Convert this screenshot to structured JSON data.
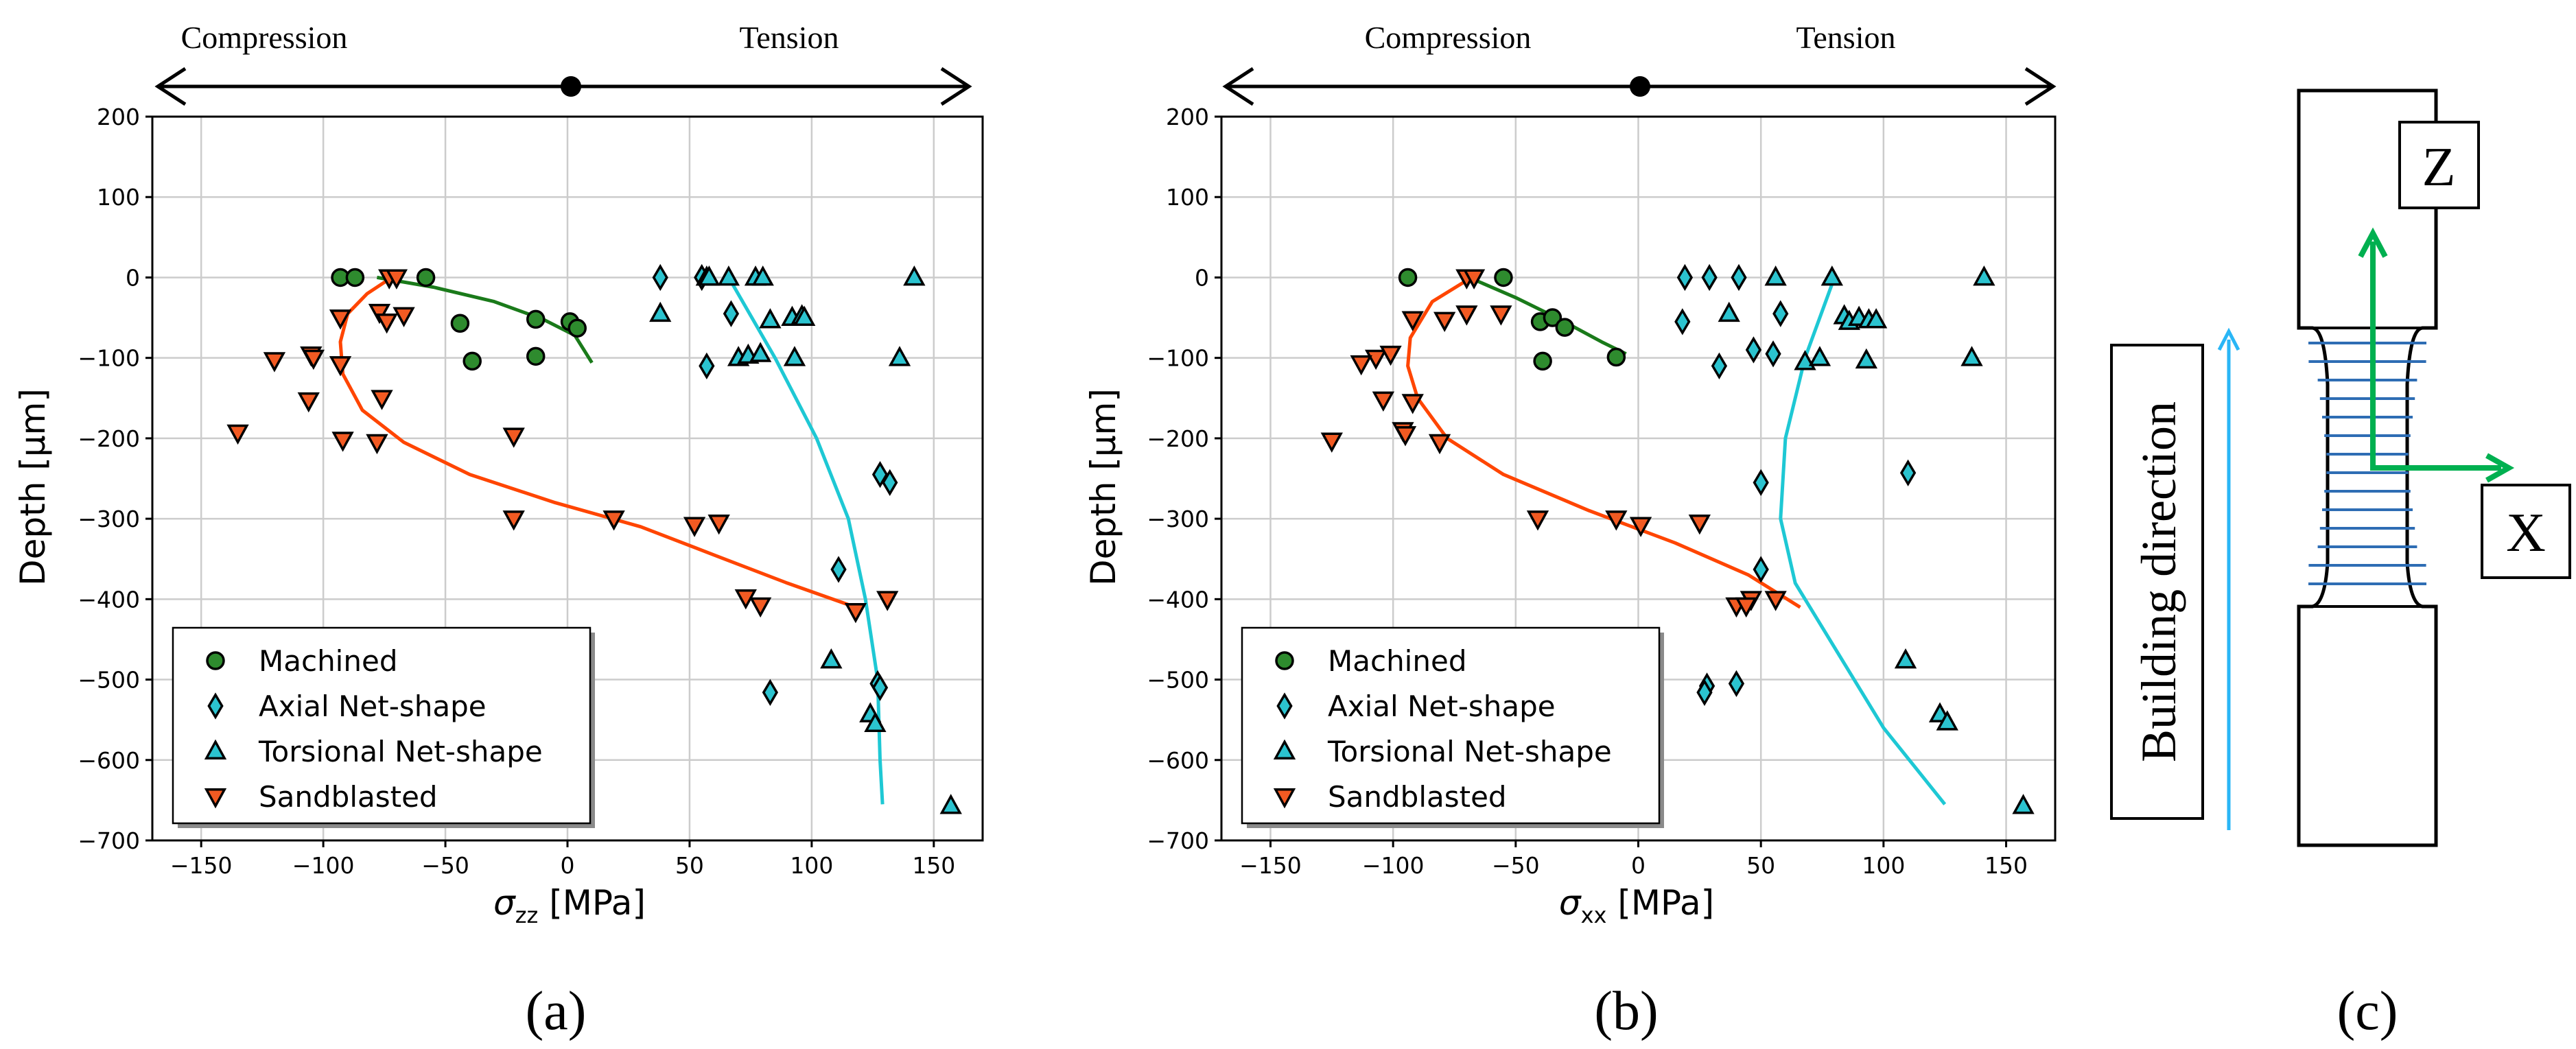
{
  "colors": {
    "machined": "#2e8b2e",
    "axial": "#2bc3cf",
    "torsional": "#2bc3cf",
    "sandblasted": "#f25a22",
    "fit_machined": "#1a7a1a",
    "fit_netshape": "#1ec8d4",
    "fit_sandblasted": "#ff4500",
    "arrow_blue": "#29b6f6",
    "axis_green": "#00b050",
    "layer_blue": "#2e6db4"
  },
  "chart_data": [
    {
      "type": "scatter",
      "panel": "(a)",
      "xlabel_symbol": "σ",
      "xlabel_sub": "zz",
      "xlabel_unit": "[MPa]",
      "ylabel": "Depth [μm]",
      "xlim": [
        -170,
        170
      ],
      "ylim": [
        -700,
        200
      ],
      "xticks": [
        -150,
        -100,
        -50,
        0,
        50,
        100,
        150
      ],
      "yticks": [
        200,
        100,
        0,
        -100,
        -200,
        -300,
        -400,
        -500,
        -600,
        -700
      ],
      "xtick_labels": [
        "−150",
        "−100",
        "−50",
        "0",
        "50",
        "100",
        "150"
      ],
      "ytick_labels": [
        "200",
        "100",
        "0",
        "−100",
        "−200",
        "−300",
        "−400",
        "−500",
        "−600",
        "−700"
      ],
      "grid": true,
      "legend_position": "lower-left",
      "region_left": "Compression",
      "region_right": "Tension",
      "series": [
        {
          "name": "Machined",
          "marker": "circle",
          "points": [
            [
              -93,
              0
            ],
            [
              -87,
              0
            ],
            [
              -58,
              0
            ],
            [
              -44,
              -57
            ],
            [
              -39,
              -104
            ],
            [
              -13,
              -52
            ],
            [
              -13,
              -98
            ],
            [
              1,
              -55
            ],
            [
              4,
              -63
            ]
          ]
        },
        {
          "name": "Axial Net-shape",
          "marker": "diamond",
          "points": [
            [
              38,
              0
            ],
            [
              55,
              0
            ],
            [
              67,
              -45
            ],
            [
              57,
              -110
            ],
            [
              128,
              -245
            ],
            [
              132,
              -255
            ],
            [
              111,
              -363
            ],
            [
              127,
              -505
            ],
            [
              128,
              -510
            ],
            [
              83,
              -516
            ]
          ]
        },
        {
          "name": "Torsional Net-shape",
          "marker": "triangle-up",
          "points": [
            [
              38,
              -45
            ],
            [
              57,
              0
            ],
            [
              66,
              0
            ],
            [
              77,
              0
            ],
            [
              80,
              0
            ],
            [
              142,
              0
            ],
            [
              58,
              0
            ],
            [
              70,
              -100
            ],
            [
              74,
              -97
            ],
            [
              79,
              -95
            ],
            [
              83,
              -53
            ],
            [
              92,
              -50
            ],
            [
              93,
              -100
            ],
            [
              96,
              -48
            ],
            [
              97,
              -50
            ],
            [
              136,
              -100
            ],
            [
              108,
              -476
            ],
            [
              124,
              -543
            ],
            [
              126,
              -555
            ],
            [
              157,
              -657
            ]
          ]
        },
        {
          "name": "Sandblasted",
          "marker": "triangle-down",
          "points": [
            [
              -73,
              0
            ],
            [
              -70,
              0
            ],
            [
              -67,
              -47
            ],
            [
              -77,
              -43
            ],
            [
              -74,
              -55
            ],
            [
              -93,
              -50
            ],
            [
              -120,
              -103
            ],
            [
              -105,
              -96
            ],
            [
              -104,
              -100
            ],
            [
              -93,
              -108
            ],
            [
              -106,
              -153
            ],
            [
              -76,
              -150
            ],
            [
              -92,
              -202
            ],
            [
              -78,
              -205
            ],
            [
              -135,
              -193
            ],
            [
              -22,
              -197
            ],
            [
              -22,
              -300
            ],
            [
              19,
              -300
            ],
            [
              52,
              -308
            ],
            [
              62,
              -305
            ],
            [
              73,
              -398
            ],
            [
              79,
              -408
            ],
            [
              118,
              -415
            ],
            [
              131,
              -400
            ]
          ]
        }
      ],
      "fits": [
        {
          "name": "Machined fit",
          "points": [
            [
              -78,
              0
            ],
            [
              -55,
              -12
            ],
            [
              -30,
              -30
            ],
            [
              -10,
              -52
            ],
            [
              3,
              -72
            ],
            [
              10,
              -106
            ]
          ]
        },
        {
          "name": "Net-shape fit",
          "points": [
            [
              66,
              0
            ],
            [
              85,
              -100
            ],
            [
              102,
              -200
            ],
            [
              115,
              -300
            ],
            [
              122,
              -400
            ],
            [
              127,
              -500
            ],
            [
              128,
              -600
            ],
            [
              129,
              -655
            ]
          ]
        },
        {
          "name": "Sandblasted fit",
          "points": [
            [
              -72,
              0
            ],
            [
              -82,
              -20
            ],
            [
              -90,
              -45
            ],
            [
              -93,
              -80
            ],
            [
              -92,
              -120
            ],
            [
              -84,
              -165
            ],
            [
              -67,
              -205
            ],
            [
              -40,
              -245
            ],
            [
              -5,
              -280
            ],
            [
              30,
              -310
            ],
            [
              60,
              -345
            ],
            [
              90,
              -380
            ],
            [
              118,
              -410
            ]
          ]
        }
      ]
    },
    {
      "type": "scatter",
      "panel": "(b)",
      "xlabel_symbol": "σ",
      "xlabel_sub": "xx",
      "xlabel_unit": "[MPa]",
      "ylabel": "Depth [μm]",
      "xlim": [
        -170,
        170
      ],
      "ylim": [
        -700,
        200
      ],
      "xticks": [
        -150,
        -100,
        -50,
        0,
        50,
        100,
        150
      ],
      "yticks": [
        200,
        100,
        0,
        -100,
        -200,
        -300,
        -400,
        -500,
        -600,
        -700
      ],
      "xtick_labels": [
        "−150",
        "−100",
        "−50",
        "0",
        "50",
        "100",
        "150"
      ],
      "ytick_labels": [
        "200",
        "100",
        "0",
        "−100",
        "−200",
        "−300",
        "−400",
        "−500",
        "−600",
        "−700"
      ],
      "grid": true,
      "legend_position": "lower-left",
      "region_left": "Compression",
      "region_right": "Tension",
      "series": [
        {
          "name": "Machined",
          "marker": "circle",
          "points": [
            [
              -94,
              0
            ],
            [
              -55,
              0
            ],
            [
              -40,
              -55
            ],
            [
              -35,
              -50
            ],
            [
              -30,
              -62
            ],
            [
              -39,
              -104
            ],
            [
              -9,
              -99
            ]
          ]
        },
        {
          "name": "Axial Net-shape",
          "marker": "diamond",
          "points": [
            [
              19,
              0
            ],
            [
              29,
              0
            ],
            [
              41,
              0
            ],
            [
              18,
              -55
            ],
            [
              33,
              -110
            ],
            [
              47,
              -90
            ],
            [
              55,
              -95
            ],
            [
              58,
              -45
            ],
            [
              50,
              -255
            ],
            [
              110,
              -243
            ],
            [
              50,
              -363
            ],
            [
              28,
              -508
            ],
            [
              27,
              -516
            ],
            [
              40,
              -505
            ]
          ]
        },
        {
          "name": "Torsional Net-shape",
          "marker": "triangle-up",
          "points": [
            [
              37,
              -45
            ],
            [
              56,
              0
            ],
            [
              79,
              0
            ],
            [
              141,
              0
            ],
            [
              68,
              -105
            ],
            [
              74,
              -100
            ],
            [
              84,
              -48
            ],
            [
              86,
              -55
            ],
            [
              90,
              -50
            ],
            [
              94,
              -53
            ],
            [
              97,
              -53
            ],
            [
              93,
              -103
            ],
            [
              136,
              -100
            ],
            [
              109,
              -476
            ],
            [
              123,
              -543
            ],
            [
              126,
              -553
            ],
            [
              157,
              -657
            ]
          ]
        },
        {
          "name": "Sandblasted",
          "marker": "triangle-down",
          "points": [
            [
              -70,
              0
            ],
            [
              -67,
              0
            ],
            [
              -92,
              -52
            ],
            [
              -79,
              -53
            ],
            [
              -70,
              -45
            ],
            [
              -56,
              -45
            ],
            [
              -107,
              -100
            ],
            [
              -101,
              -95
            ],
            [
              -113,
              -107
            ],
            [
              -104,
              -152
            ],
            [
              -92,
              -155
            ],
            [
              -96,
              -190
            ],
            [
              -95,
              -195
            ],
            [
              -81,
              -205
            ],
            [
              -125,
              -203
            ],
            [
              -41,
              -300
            ],
            [
              -9,
              -300
            ],
            [
              1,
              -308
            ],
            [
              25,
              -305
            ],
            [
              40,
              -408
            ],
            [
              46,
              -400
            ],
            [
              44,
              -408
            ],
            [
              56,
              -400
            ]
          ]
        }
      ],
      "fits": [
        {
          "name": "Machined fit",
          "points": [
            [
              -69,
              0
            ],
            [
              -50,
              -25
            ],
            [
              -32,
              -52
            ],
            [
              -15,
              -80
            ],
            [
              -5,
              -95
            ]
          ]
        },
        {
          "name": "Net-shape fit",
          "points": [
            [
              80,
              0
            ],
            [
              68,
              -100
            ],
            [
              60,
              -200
            ],
            [
              58,
              -300
            ],
            [
              64,
              -380
            ],
            [
              80,
              -460
            ],
            [
              100,
              -560
            ],
            [
              125,
              -655
            ]
          ]
        },
        {
          "name": "Sandblasted fit",
          "points": [
            [
              -68,
              0
            ],
            [
              -84,
              -30
            ],
            [
              -93,
              -75
            ],
            [
              -94,
              -110
            ],
            [
              -90,
              -150
            ],
            [
              -78,
              -200
            ],
            [
              -55,
              -245
            ],
            [
              -20,
              -290
            ],
            [
              15,
              -330
            ],
            [
              45,
              -370
            ],
            [
              66,
              -410
            ]
          ]
        }
      ]
    }
  ],
  "legend": {
    "items": [
      "Machined",
      "Axial Net-shape",
      "Torsional Net-shape",
      "Sandblasted"
    ]
  },
  "panel_c": {
    "label": "(c)",
    "building_direction": "Building direction",
    "z_label": "Z",
    "x_label": "X"
  }
}
